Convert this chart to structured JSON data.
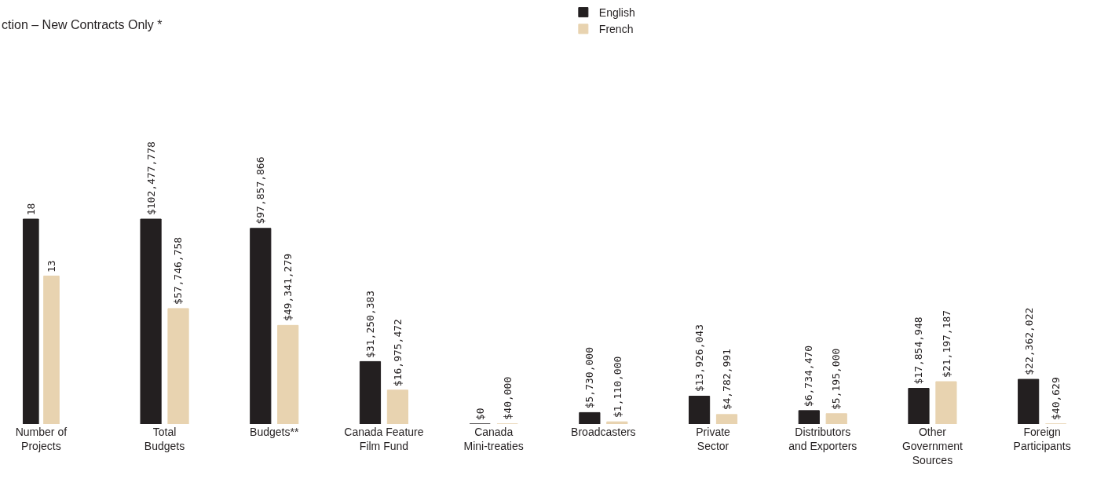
{
  "chart_data": [
    {
      "type": "bar",
      "title": "ction – New Contracts Only *",
      "categories": [
        "Number of\nProjects"
      ],
      "series": [
        {
          "name": "English",
          "color": "#231f20",
          "values": [
            18
          ]
        },
        {
          "name": "French",
          "color": "#e8d3b0",
          "values": [
            13
          ]
        }
      ],
      "data_labels": true,
      "tick_labels": "x",
      "legend": "top"
    },
    {
      "type": "bar",
      "categories": [
        "Total\nBudgets",
        "Budgets**",
        "Canada Feature\nFilm Fund",
        "Canada\nMini-treaties",
        "Broadcasters",
        "Private\nSector",
        "Distributors\nand Exporters",
        "Other\nGovernment\nSources",
        "Foreign\nParticipants"
      ],
      "series": [
        {
          "color": "#231f20",
          "values": [
            102477778,
            97857866,
            31250383,
            0,
            5730000,
            13926043,
            6734470,
            17854948,
            22362022
          ],
          "value_labels": [
            "$102,477,778",
            "$97,857,866",
            "$31,250,383",
            "$0",
            "$5,730,000",
            "$13,926,043",
            "$6,734,470",
            "$17,854,948",
            "$22,362,022"
          ]
        },
        {
          "color": "#e8d3b0",
          "values": [
            57746758,
            49341279,
            16975472,
            40000,
            1110000,
            4782991,
            5195000,
            21197187,
            40629
          ],
          "value_labels": [
            "$57,746,758",
            "$49,341,279",
            "$16,975,472",
            "$40,000",
            "$1,110,000",
            "$4,782,991",
            "$5,195,000",
            "$21,197,187",
            "$40,629"
          ]
        }
      ],
      "tick_labels": "x"
    }
  ]
}
